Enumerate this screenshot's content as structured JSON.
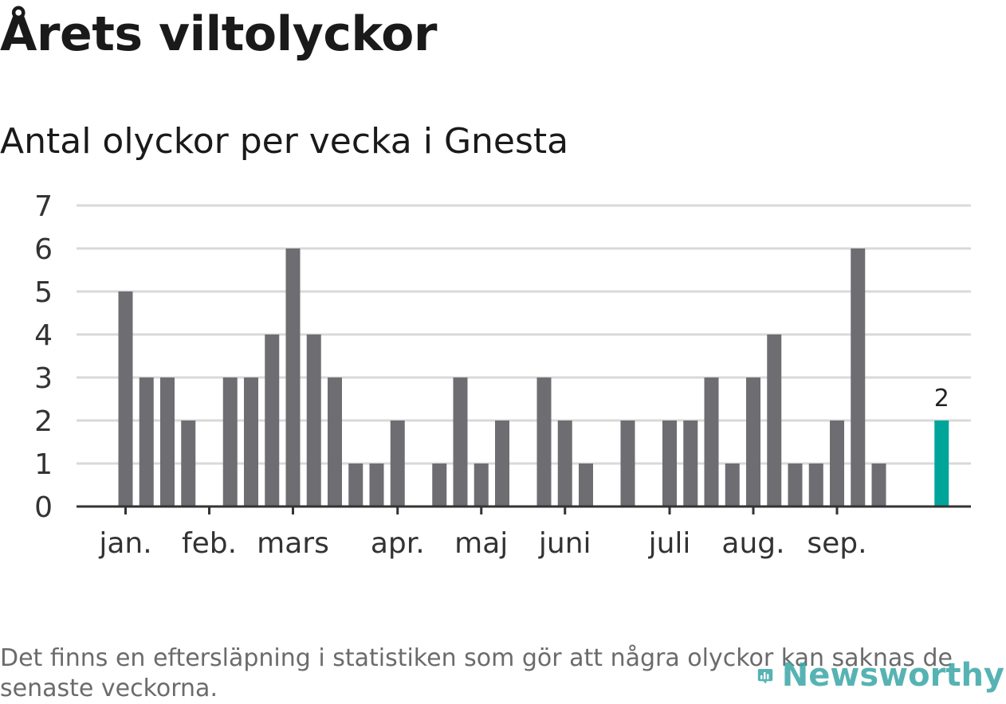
{
  "header": {
    "title": "Årets viltolyckor",
    "subtitle": "Antal olyckor per vecka i Gnesta"
  },
  "footnote": "Det finns en eftersläpning i statistiken som gör att några olyckor kan saknas de senaste veckorna.",
  "logo": {
    "text": "Newsworthy",
    "icon": "bar-chart-icon"
  },
  "colors": {
    "bar": "#6d6d72",
    "highlight": "#00a59a",
    "grid": "#d9d9d9",
    "axis": "#333333"
  },
  "chart_data": {
    "type": "bar",
    "title": "Antal olyckor per vecka i Gnesta",
    "xlabel": "",
    "ylabel": "",
    "ylim": [
      0,
      7
    ],
    "yticks": [
      0,
      1,
      2,
      3,
      4,
      5,
      6,
      7
    ],
    "grid": true,
    "weeks": [
      1,
      2,
      3,
      4,
      5,
      6,
      7,
      8,
      9,
      10,
      11,
      12,
      13,
      14,
      15,
      16,
      17,
      18,
      19,
      20,
      21,
      22,
      23,
      24,
      25,
      26,
      27,
      28,
      29,
      30,
      31,
      32,
      33,
      34,
      35,
      36,
      37,
      38,
      39,
      40,
      41,
      42
    ],
    "values": [
      0,
      0,
      5,
      3,
      3,
      2,
      0,
      3,
      3,
      4,
      6,
      4,
      3,
      1,
      1,
      2,
      0,
      1,
      3,
      1,
      2,
      0,
      3,
      2,
      1,
      0,
      2,
      0,
      2,
      2,
      3,
      1,
      3,
      4,
      1,
      1,
      2,
      6,
      1,
      0,
      0,
      2
    ],
    "highlight_last": true,
    "last_value_label": "2",
    "month_ticks": [
      {
        "label": "jan.",
        "week": 3
      },
      {
        "label": "feb.",
        "week": 7
      },
      {
        "label": "mars",
        "week": 11
      },
      {
        "label": "apr.",
        "week": 16
      },
      {
        "label": "maj",
        "week": 20
      },
      {
        "label": "juni",
        "week": 24
      },
      {
        "label": "juli",
        "week": 29
      },
      {
        "label": "aug.",
        "week": 33
      },
      {
        "label": "sep.",
        "week": 37
      }
    ]
  }
}
